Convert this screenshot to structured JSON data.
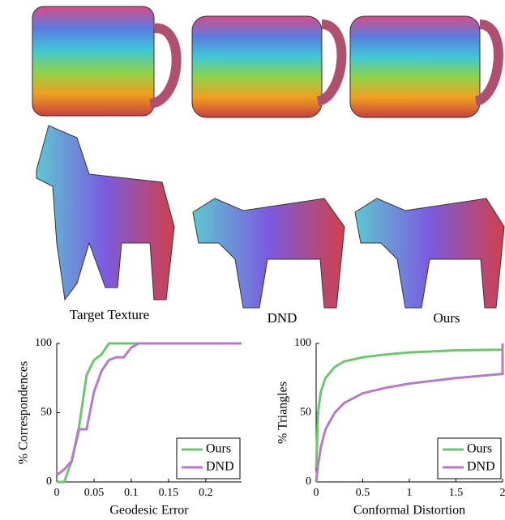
{
  "captions": [
    "Target Texture",
    "DND",
    "Ours"
  ],
  "chart_data": [
    {
      "type": "line",
      "xlabel": "Geodesic Error",
      "ylabel": "% Correspondences",
      "x": [
        0,
        0.01,
        0.02,
        0.03,
        0.04,
        0.05,
        0.06,
        0.07,
        0.08,
        0.09,
        0.1,
        0.11,
        0.248
      ],
      "series": [
        {
          "name": "Ours",
          "color": "#6fc46f",
          "values": [
            0,
            0,
            15,
            40,
            77,
            88,
            92,
            100,
            100,
            100,
            100,
            100,
            100
          ]
        },
        {
          "name": "DND",
          "color": "#b57cc6",
          "values": [
            5,
            9,
            15,
            38,
            38,
            65,
            80,
            88,
            90,
            90,
            97,
            100,
            100
          ]
        }
      ],
      "xlim": [
        0,
        0.248
      ],
      "xticks": [
        0,
        0.05,
        0.1,
        0.15,
        0.2
      ],
      "ylim": [
        0,
        100
      ],
      "yticks": [
        0,
        50,
        100
      ],
      "legend": "lower right"
    },
    {
      "type": "line",
      "xlabel": "Conformal Distortion",
      "ylabel": "% Triangles",
      "x": [
        0,
        0.02,
        0.05,
        0.1,
        0.2,
        0.3,
        0.5,
        0.75,
        1,
        1.5,
        2,
        2
      ],
      "series": [
        {
          "name": "Ours",
          "color": "#6fc46f",
          "values": [
            10,
            50,
            65,
            75,
            83,
            87,
            90,
            92,
            93.5,
            95,
            95.5,
            null
          ]
        },
        {
          "name": "DND",
          "color": "#b57cc6",
          "values": [
            0,
            12,
            25,
            38,
            50,
            57,
            64,
            68,
            71,
            75,
            78,
            100
          ]
        }
      ],
      "xlim": [
        0,
        2
      ],
      "xticks": [
        0,
        0.5,
        1,
        1.5,
        2
      ],
      "ylim": [
        0,
        100
      ],
      "yticks": [
        0,
        50,
        100
      ],
      "legend": "lower right"
    }
  ]
}
